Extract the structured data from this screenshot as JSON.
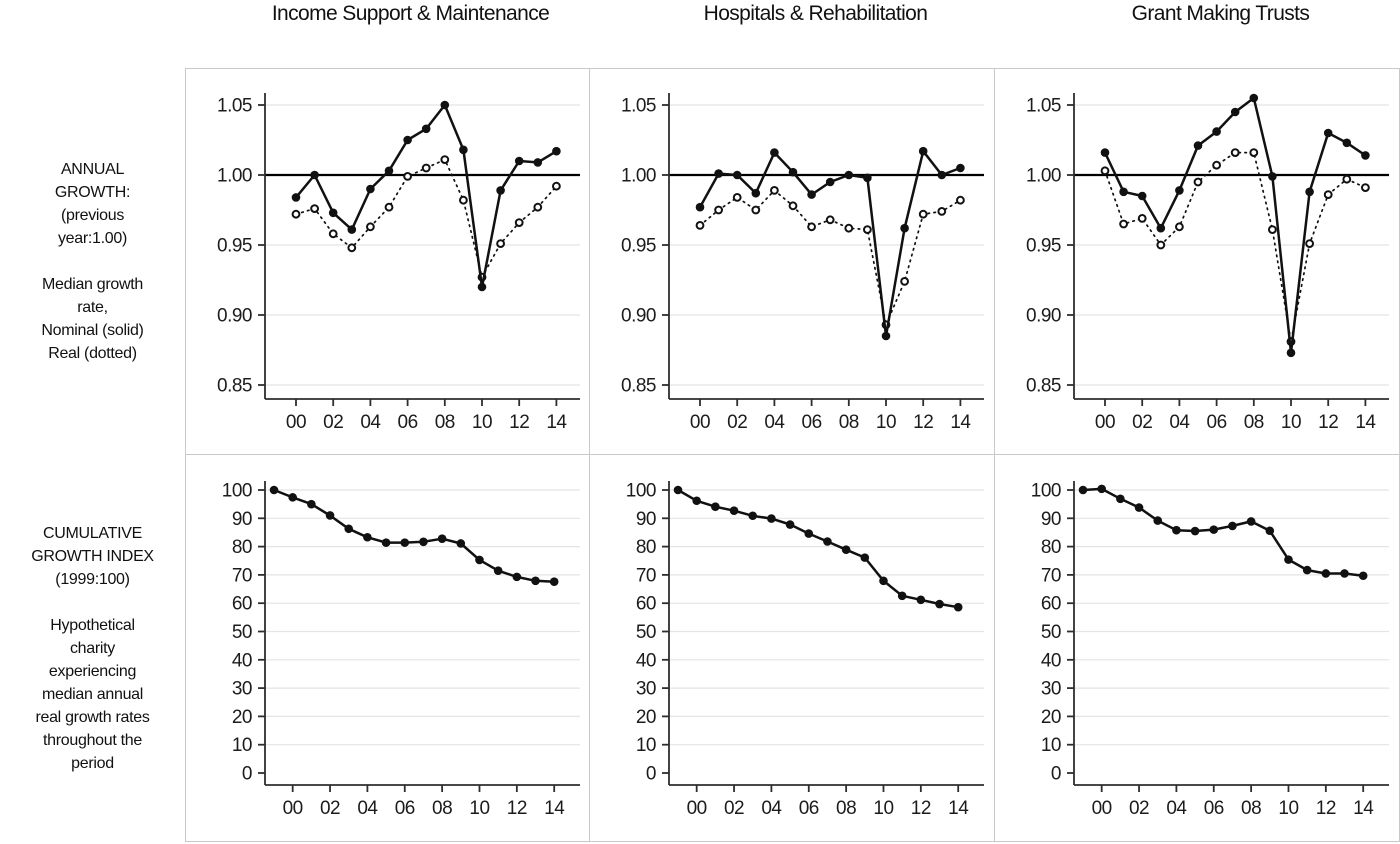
{
  "labels": {
    "annual_growth": "ANNUAL\nGROWTH:\n(previous\nyear:1.00)\n\nMedian growth\nrate,\nNominal (solid)\nReal (dotted)",
    "cumulative": "CUMULATIVE\nGROWTH  INDEX\n(1999:100)\n\nHypothetical\ncharity\nexperiencing\nmedian annual\nreal growth rates\nthroughout the\nperiod"
  },
  "colors": {
    "line": "#111111",
    "grid": "#e4e4e4",
    "axis": "#2e2e2e",
    "reference": "#000000",
    "tick_text": "#1c1c1c",
    "panel_border": "#c9c9c9"
  },
  "chart_data": {
    "top_row": {
      "type": "line",
      "description": "Median annual growth rate relative to previous year (1.00). Solid = nominal, dotted = real.",
      "ylim": [
        0.85,
        1.05
      ],
      "grid": true,
      "reference_line": 1.0,
      "y_ticks": [
        1.05,
        1.0,
        0.95,
        0.9,
        0.85
      ],
      "y_tick_labels": [
        "1.05",
        "1.00",
        "0.95",
        "0.90",
        "0.85"
      ],
      "x_years": [
        "00",
        "01",
        "02",
        "03",
        "04",
        "05",
        "06",
        "07",
        "08",
        "09",
        "10",
        "11",
        "12",
        "13",
        "14"
      ],
      "x_tick_labels": [
        "00",
        "02",
        "04",
        "06",
        "08",
        "10",
        "12",
        "14"
      ],
      "panels": [
        {
          "title": "Income Support & Maintenance",
          "series": [
            {
              "name": "nominal",
              "style": "solid",
              "values": [
                0.984,
                1.0,
                0.973,
                0.961,
                0.99,
                1.003,
                1.025,
                1.033,
                1.05,
                1.018,
                0.92,
                0.989,
                1.01,
                1.009,
                1.017
              ]
            },
            {
              "name": "real",
              "style": "dotted",
              "values": [
                0.972,
                0.976,
                0.958,
                0.948,
                0.963,
                0.977,
                0.999,
                1.005,
                1.011,
                0.982,
                0.927,
                0.951,
                0.966,
                0.977,
                0.992
              ]
            }
          ]
        },
        {
          "title": "Hospitals & Rehabilitation",
          "series": [
            {
              "name": "nominal",
              "style": "solid",
              "values": [
                0.977,
                1.001,
                1.0,
                0.987,
                1.016,
                1.002,
                0.986,
                0.995,
                1.0,
                0.998,
                0.885,
                0.962,
                1.017,
                1.0,
                1.005
              ]
            },
            {
              "name": "real",
              "style": "dotted",
              "values": [
                0.964,
                0.975,
                0.984,
                0.975,
                0.989,
                0.978,
                0.963,
                0.968,
                0.962,
                0.961,
                0.893,
                0.924,
                0.972,
                0.974,
                0.982
              ]
            }
          ]
        },
        {
          "title": "Grant Making Trusts",
          "series": [
            {
              "name": "nominal",
              "style": "solid",
              "values": [
                1.016,
                0.988,
                0.985,
                0.962,
                0.989,
                1.021,
                1.031,
                1.045,
                1.055,
                0.999,
                0.873,
                0.988,
                1.03,
                1.023,
                1.014
              ]
            },
            {
              "name": "real",
              "style": "dotted",
              "values": [
                1.003,
                0.965,
                0.969,
                0.95,
                0.963,
                0.995,
                1.007,
                1.016,
                1.016,
                0.961,
                0.881,
                0.951,
                0.986,
                0.997,
                0.991
              ]
            }
          ]
        }
      ]
    },
    "bottom_row": {
      "type": "line",
      "description": "Cumulative growth index (1999 = 100) for a hypothetical charity experiencing median annual real growth rates throughout the period.",
      "ylim": [
        0,
        100
      ],
      "grid": true,
      "y_ticks": [
        100,
        90,
        80,
        70,
        60,
        50,
        40,
        30,
        20,
        10,
        0
      ],
      "y_tick_labels": [
        "100",
        "90",
        "80",
        "70",
        "60",
        "50",
        "40",
        "30",
        "20",
        "10",
        "0"
      ],
      "x_years": [
        "99",
        "00",
        "01",
        "02",
        "03",
        "04",
        "05",
        "06",
        "07",
        "08",
        "09",
        "10",
        "11",
        "12",
        "13",
        "14"
      ],
      "x_tick_labels": [
        "00",
        "02",
        "04",
        "06",
        "08",
        "10",
        "12",
        "14"
      ],
      "panels": [
        {
          "title": "Income Support & Maintenance",
          "series": [
            {
              "name": "index",
              "style": "solid",
              "values": [
                100,
                97.4,
                95.0,
                91.0,
                86.3,
                83.3,
                81.4,
                81.4,
                81.7,
                82.8,
                81.1,
                75.3,
                71.5,
                69.3,
                67.9,
                67.6
              ]
            }
          ]
        },
        {
          "title": "Hospitals & Rehabilitation",
          "series": [
            {
              "name": "index",
              "style": "solid",
              "values": [
                100,
                96.2,
                94.1,
                92.7,
                90.9,
                89.9,
                87.8,
                84.6,
                81.8,
                78.9,
                76.1,
                67.9,
                62.6,
                61.2,
                59.7,
                58.6
              ]
            }
          ]
        },
        {
          "title": "Grant Making Trusts",
          "series": [
            {
              "name": "index",
              "style": "solid",
              "values": [
                100,
                100.4,
                96.9,
                93.8,
                89.2,
                85.8,
                85.5,
                86.0,
                87.3,
                88.9,
                85.6,
                75.4,
                71.7,
                70.5,
                70.5,
                69.7
              ]
            }
          ]
        }
      ]
    }
  }
}
